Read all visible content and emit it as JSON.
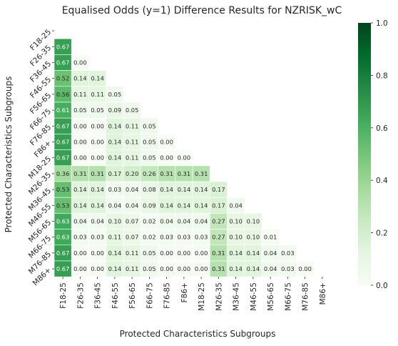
{
  "chart_data": {
    "type": "heatmap",
    "title": "Equalised Odds (y=1) Difference Results for NZRISK_wC",
    "xlabel": "Protected Characteristics Subgroups",
    "ylabel": "Protected Characteristics Subgroups",
    "categories": [
      "F18-25",
      "F26-35",
      "F36-45",
      "F46-55",
      "F56-65",
      "F66-75",
      "F76-85",
      "F86+",
      "M18-25",
      "M26-35",
      "M36-45",
      "M46-55",
      "M56-65",
      "M66-75",
      "M76-85",
      "M86+"
    ],
    "mask": "upper triangle including diagonal",
    "rows": [
      [],
      [
        0.67
      ],
      [
        0.67,
        0.0
      ],
      [
        0.52,
        0.14,
        0.14
      ],
      [
        0.56,
        0.11,
        0.11,
        0.05
      ],
      [
        0.61,
        0.05,
        0.05,
        0.09,
        0.05
      ],
      [
        0.67,
        0.0,
        0.0,
        0.14,
        0.11,
        0.05
      ],
      [
        0.67,
        0.0,
        0.0,
        0.14,
        0.11,
        0.05,
        0.0
      ],
      [
        0.67,
        0.0,
        0.0,
        0.14,
        0.11,
        0.05,
        0.0,
        0.0
      ],
      [
        0.36,
        0.31,
        0.31,
        0.17,
        0.2,
        0.26,
        0.31,
        0.31,
        0.31
      ],
      [
        0.53,
        0.14,
        0.14,
        0.03,
        0.04,
        0.08,
        0.14,
        0.14,
        0.14,
        0.17
      ],
      [
        0.53,
        0.14,
        0.14,
        0.04,
        0.04,
        0.09,
        0.14,
        0.14,
        0.14,
        0.17,
        0.04
      ],
      [
        0.63,
        0.04,
        0.04,
        0.1,
        0.07,
        0.02,
        0.04,
        0.04,
        0.04,
        0.27,
        0.1,
        0.1
      ],
      [
        0.63,
        0.03,
        0.03,
        0.11,
        0.07,
        0.02,
        0.03,
        0.03,
        0.03,
        0.27,
        0.1,
        0.1,
        0.01
      ],
      [
        0.67,
        0.0,
        0.0,
        0.14,
        0.11,
        0.05,
        0.0,
        0.0,
        0.0,
        0.31,
        0.14,
        0.14,
        0.04,
        0.03
      ],
      [
        0.67,
        0.0,
        0.0,
        0.14,
        0.11,
        0.05,
        0.0,
        0.0,
        0.0,
        0.31,
        0.14,
        0.14,
        0.04,
        0.03,
        0.0
      ]
    ],
    "value_format": "2 decimals",
    "colorbar": {
      "colormap": "Greens",
      "min": 0.0,
      "max": 1.0,
      "ticks": [
        "0.0",
        "0.2",
        "0.4",
        "0.6",
        "0.8",
        "1.0"
      ]
    },
    "grid": false
  }
}
